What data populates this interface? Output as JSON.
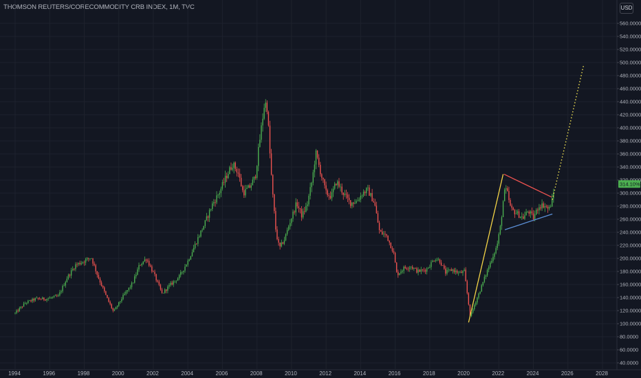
{
  "header": {
    "title": "THOMSON REUTERS/CORECOMMODITY CRB INDEX, 1M, TVC",
    "currency": "USD"
  },
  "colors": {
    "background": "#131722",
    "up": "#26a69a",
    "up_candle": "#4caf50",
    "down": "#ef5350",
    "grid": "#1e222d",
    "axis_text": "#b2b5be",
    "price_tag": "#4caf50",
    "trend_yellow": "#f5d547",
    "trend_red": "#ef5350",
    "trend_blue": "#5b8fd6",
    "projection": "#f5e653"
  },
  "chart_data": {
    "type": "candlestick",
    "title": "THOMSON REUTERS/CORECOMMODITY CRB INDEX, 1M, TVC",
    "interval": "1M",
    "x_ticks": [
      "1994",
      "1996",
      "1998",
      "2000",
      "2002",
      "2004",
      "2006",
      "2008",
      "2010",
      "2012",
      "2014",
      "2016",
      "2018",
      "2020",
      "2022",
      "2024",
      "2026",
      "2028"
    ],
    "y_ticks": [
      "560.0000",
      "540.0000",
      "520.0000",
      "500.0000",
      "480.0000",
      "460.0000",
      "440.0000",
      "420.0000",
      "400.0000",
      "380.0000",
      "360.0000",
      "340.0000",
      "320.0000",
      "300.0000",
      "280.0000",
      "260.0000",
      "240.0000",
      "220.0000",
      "200.0000",
      "180.0000",
      "160.0000",
      "140.0000",
      "120.0000",
      "100.0000",
      "80.0000",
      "60.0000",
      "40.0000"
    ],
    "ylim": [
      32,
      575
    ],
    "xlim": [
      1993.6,
      2029.4
    ],
    "last_price_label": "314.10%",
    "last_price": 314,
    "grid": true,
    "anchors": [
      [
        1994.0,
        116
      ],
      [
        1994.6,
        132
      ],
      [
        1995.2,
        138
      ],
      [
        1995.8,
        138
      ],
      [
        1996.5,
        142
      ],
      [
        1997.0,
        170
      ],
      [
        1997.5,
        190
      ],
      [
        1998.0,
        196
      ],
      [
        1998.4,
        202
      ],
      [
        1998.8,
        172
      ],
      [
        1999.3,
        140
      ],
      [
        1999.7,
        118
      ],
      [
        2000.2,
        140
      ],
      [
        2000.8,
        162
      ],
      [
        2001.2,
        190
      ],
      [
        2001.6,
        200
      ],
      [
        2002.1,
        172
      ],
      [
        2002.5,
        146
      ],
      [
        2003.0,
        160
      ],
      [
        2003.5,
        172
      ],
      [
        2004.0,
        196
      ],
      [
        2004.6,
        232
      ],
      [
        2005.0,
        255
      ],
      [
        2005.4,
        282
      ],
      [
        2005.8,
        300
      ],
      [
        2006.3,
        330
      ],
      [
        2006.6,
        345
      ],
      [
        2006.9,
        332
      ],
      [
        2007.2,
        300
      ],
      [
        2007.6,
        310
      ],
      [
        2007.9,
        325
      ],
      [
        2008.2,
        390
      ],
      [
        2008.45,
        440
      ],
      [
        2008.6,
        430
      ],
      [
        2008.75,
        360
      ],
      [
        2008.9,
        300
      ],
      [
        2009.1,
        240
      ],
      [
        2009.3,
        215
      ],
      [
        2009.6,
        230
      ],
      [
        2009.9,
        255
      ],
      [
        2010.3,
        285
      ],
      [
        2010.6,
        265
      ],
      [
        2010.9,
        282
      ],
      [
        2011.2,
        320
      ],
      [
        2011.4,
        362
      ],
      [
        2011.7,
        330
      ],
      [
        2012.0,
        300
      ],
      [
        2012.3,
        295
      ],
      [
        2012.6,
        318
      ],
      [
        2013.0,
        300
      ],
      [
        2013.4,
        285
      ],
      [
        2013.8,
        288
      ],
      [
        2014.1,
        300
      ],
      [
        2014.4,
        305
      ],
      [
        2014.8,
        285
      ],
      [
        2015.1,
        240
      ],
      [
        2015.5,
        235
      ],
      [
        2015.9,
        210
      ],
      [
        2016.1,
        175
      ],
      [
        2016.5,
        185
      ],
      [
        2016.9,
        188
      ],
      [
        2017.3,
        180
      ],
      [
        2017.8,
        183
      ],
      [
        2018.3,
        200
      ],
      [
        2018.6,
        196
      ],
      [
        2018.9,
        178
      ],
      [
        2019.3,
        183
      ],
      [
        2019.7,
        177
      ],
      [
        2020.0,
        180
      ],
      [
        2020.2,
        140
      ],
      [
        2020.35,
        110
      ],
      [
        2020.6,
        130
      ],
      [
        2020.9,
        150
      ],
      [
        2021.2,
        172
      ],
      [
        2021.6,
        200
      ],
      [
        2021.9,
        220
      ],
      [
        2022.1,
        250
      ],
      [
        2022.3,
        300
      ],
      [
        2022.45,
        305
      ],
      [
        2022.7,
        275
      ],
      [
        2023.0,
        270
      ],
      [
        2023.4,
        262
      ],
      [
        2023.7,
        273
      ],
      [
        2024.0,
        262
      ],
      [
        2024.3,
        280
      ],
      [
        2024.6,
        282
      ],
      [
        2024.9,
        275
      ],
      [
        2025.1,
        290
      ],
      [
        2025.2,
        304
      ]
    ],
    "trendlines": [
      {
        "name": "rally-support",
        "color": "yellow",
        "from": [
          2020.25,
          102
        ],
        "to": [
          2022.25,
          329
        ],
        "style": "solid"
      },
      {
        "name": "descending-resistance",
        "color": "red",
        "from": [
          2022.3,
          329
        ],
        "to": [
          2025.05,
          294
        ],
        "style": "solid"
      },
      {
        "name": "ascending-support",
        "color": "blue",
        "from": [
          2022.35,
          244
        ],
        "to": [
          2025.1,
          268
        ],
        "style": "solid"
      },
      {
        "name": "projection",
        "color": "yellow",
        "from": [
          2025.1,
          290
        ],
        "to": [
          2026.9,
          495
        ],
        "style": "dotted"
      }
    ]
  }
}
